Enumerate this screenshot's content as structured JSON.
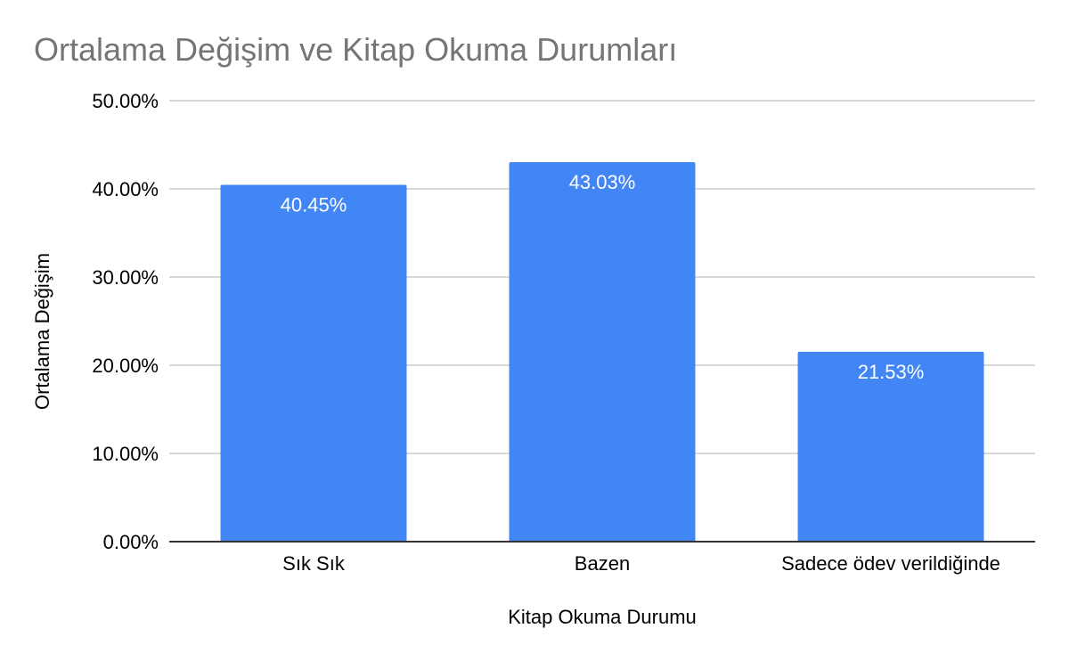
{
  "chart_data": {
    "type": "bar",
    "title": "Ortalama Değişim ve Kitap Okuma Durumları",
    "xlabel": "Kitap Okuma Durumu",
    "ylabel": "Ortalama Değişim",
    "categories": [
      "Sık Sık",
      "Bazen",
      "Sadece ödev verildiğinde"
    ],
    "values": [
      40.45,
      43.03,
      21.53
    ],
    "data_labels": [
      "40.45%",
      "43.03%",
      "21.53%"
    ],
    "ylim": [
      0,
      50
    ],
    "yticks": [
      0,
      10,
      20,
      30,
      40,
      50
    ],
    "ytick_labels": [
      "0.00%",
      "10.00%",
      "20.00%",
      "30.00%",
      "40.00%",
      "50.00%"
    ],
    "grid": true,
    "legend": "none",
    "bar_color": "#4285F4"
  }
}
